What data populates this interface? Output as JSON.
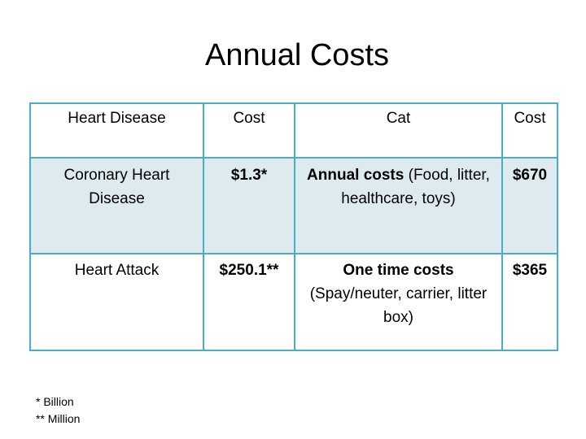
{
  "title": "Annual Costs",
  "table": {
    "headers": [
      "Heart Disease",
      "Cost",
      "Cat",
      "Cost"
    ],
    "rows": [
      {
        "disease": "Coronary Heart Disease",
        "disease_cost": "$1.3*",
        "cat_bold": "Annual costs",
        "cat_rest": " (Food, litter, healthcare, toys)",
        "cat_cost": "$670"
      },
      {
        "disease": "Heart Attack",
        "disease_cost": "$250.1**",
        "cat_bold": "One time costs",
        "cat_rest": " (Spay/neuter, carrier, litter box)",
        "cat_cost": "$365"
      }
    ]
  },
  "footnotes": [
    "* Billion",
    "** Million"
  ],
  "colors": {
    "border": "#4bacc6",
    "shaded_row": "#ddebf1"
  }
}
